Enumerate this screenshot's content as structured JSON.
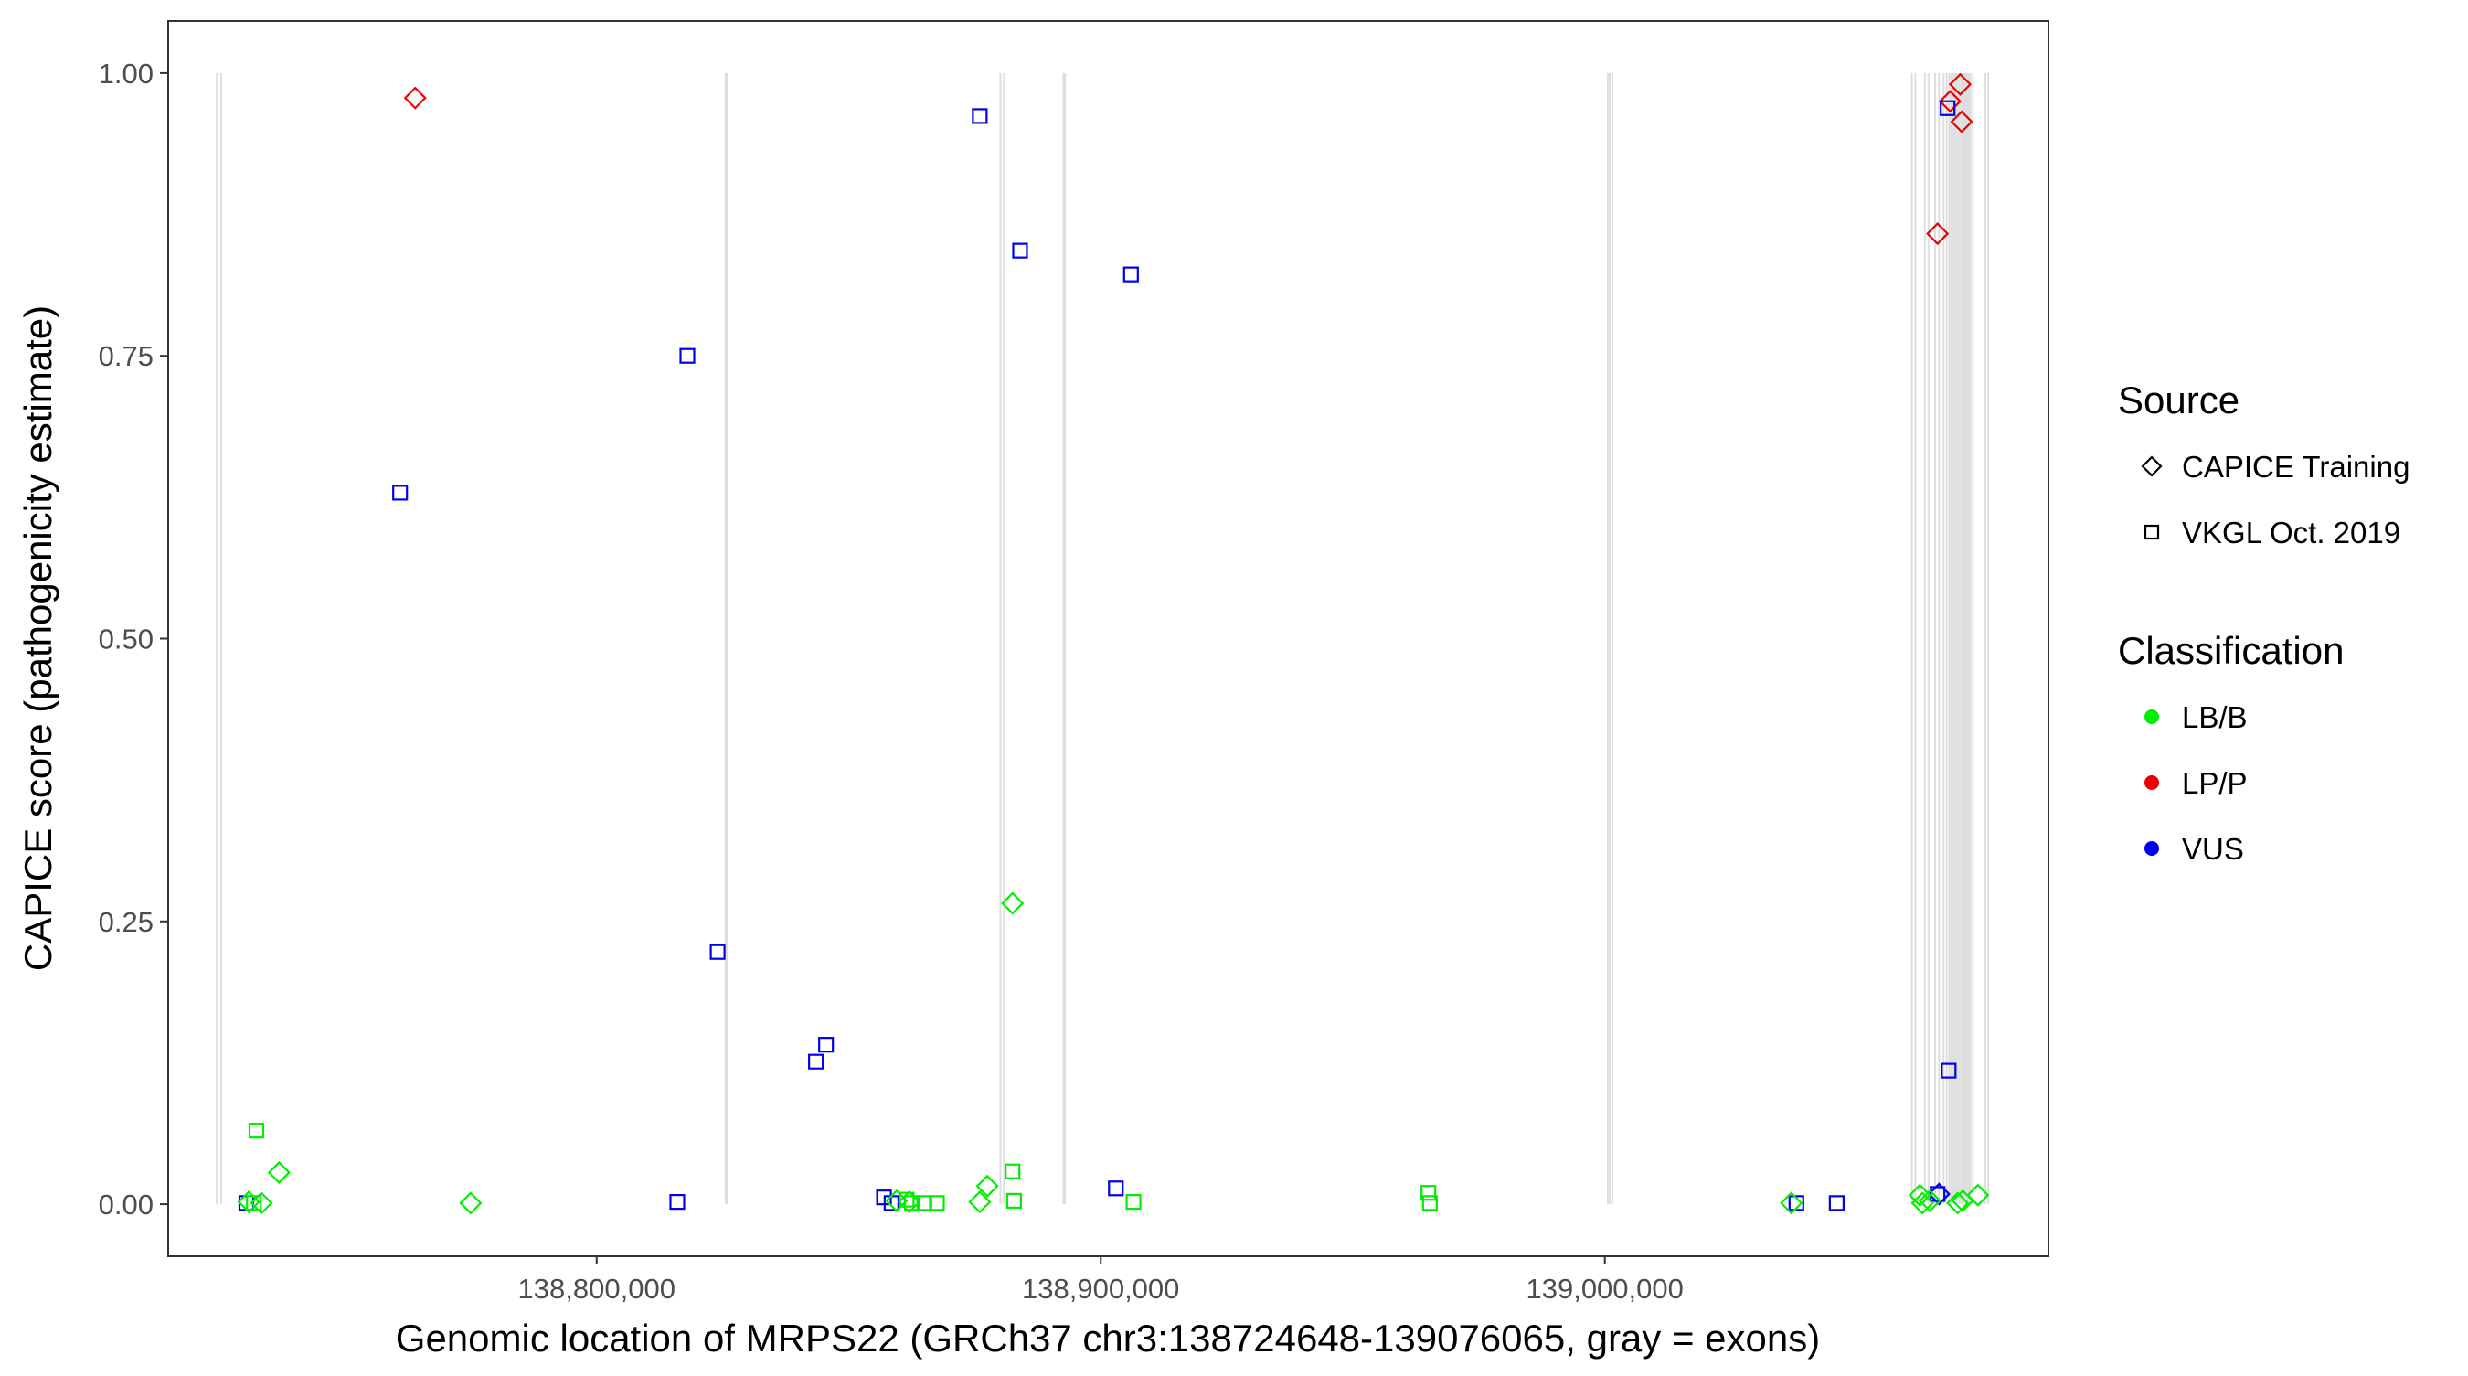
{
  "chart_data": {
    "type": "scatter",
    "xlabel": "Genomic location of MRPS22 (GRCh37 chr3:138724648-139076065, gray = exons)",
    "ylabel": "CAPICE score (pathogenicity estimate)",
    "xlim": [
      138715000,
      139088000
    ],
    "ylim": [
      -0.046,
      1.046
    ],
    "x_ticks": [
      138800000,
      138900000,
      139000000
    ],
    "x_tick_labels": [
      "138,800,000",
      "138,900,000",
      "139,000,000"
    ],
    "y_ticks": [
      0,
      0.25,
      0.5,
      0.75,
      1
    ],
    "y_tick_labels": [
      "0.00",
      "0.25",
      "0.50",
      "0.75",
      "1.00"
    ],
    "grid": false,
    "legend_position": "right",
    "colors": {
      "LB/B": "#00ee00",
      "LP/P": "#ee0000",
      "VUS": "#0000ee"
    },
    "exon_lines": [
      138724648,
      138725500,
      138825600,
      138825800,
      138880100,
      138880800,
      138892600,
      138892900,
      139000600,
      139001000,
      139001500,
      139060900,
      139061600,
      139063500,
      139064200,
      139065500,
      139066300,
      139067200,
      139067800,
      139068300,
      139068700,
      139069100,
      139069500,
      139069900,
      139070300,
      139070700,
      139071000,
      139071300,
      139071600,
      139071900,
      139072200,
      139072500,
      139073000,
      139075500,
      139076065
    ],
    "legends": [
      {
        "title": "Source",
        "items": [
          {
            "label": "CAPICE Training",
            "shape": "diamond"
          },
          {
            "label": "VKGL Oct. 2019",
            "shape": "square"
          }
        ]
      },
      {
        "title": "Classification",
        "items": [
          {
            "label": "LB/B",
            "class": "LB/B"
          },
          {
            "label": "LP/P",
            "class": "LP/P"
          },
          {
            "label": "VUS",
            "class": "VUS"
          }
        ]
      }
    ],
    "points": [
      {
        "x": 138764000,
        "y": 0.978,
        "source": "CAPICE Training",
        "class": "LP/P"
      },
      {
        "x": 139066000,
        "y": 0.858,
        "source": "CAPICE Training",
        "class": "LP/P"
      },
      {
        "x": 139068500,
        "y": 0.975,
        "source": "CAPICE Training",
        "class": "LP/P"
      },
      {
        "x": 139070500,
        "y": 0.99,
        "source": "CAPICE Training",
        "class": "LP/P"
      },
      {
        "x": 139070800,
        "y": 0.957,
        "source": "CAPICE Training",
        "class": "LP/P"
      },
      {
        "x": 138761000,
        "y": 0.629,
        "source": "VKGL Oct. 2019",
        "class": "VUS"
      },
      {
        "x": 138818000,
        "y": 0.75,
        "source": "VKGL Oct. 2019",
        "class": "VUS"
      },
      {
        "x": 138824000,
        "y": 0.223,
        "source": "VKGL Oct. 2019",
        "class": "VUS"
      },
      {
        "x": 138843500,
        "y": 0.126,
        "source": "VKGL Oct. 2019",
        "class": "VUS"
      },
      {
        "x": 138845500,
        "y": 0.141,
        "source": "VKGL Oct. 2019",
        "class": "VUS"
      },
      {
        "x": 138876000,
        "y": 0.962,
        "source": "VKGL Oct. 2019",
        "class": "VUS"
      },
      {
        "x": 138884000,
        "y": 0.843,
        "source": "VKGL Oct. 2019",
        "class": "VUS"
      },
      {
        "x": 138906000,
        "y": 0.822,
        "source": "VKGL Oct. 2019",
        "class": "VUS"
      },
      {
        "x": 138730500,
        "y": 0.001,
        "source": "VKGL Oct. 2019",
        "class": "VUS"
      },
      {
        "x": 138816000,
        "y": 0.002,
        "source": "VKGL Oct. 2019",
        "class": "VUS"
      },
      {
        "x": 138857000,
        "y": 0.006,
        "source": "VKGL Oct. 2019",
        "class": "VUS"
      },
      {
        "x": 138858500,
        "y": 0.001,
        "source": "VKGL Oct. 2019",
        "class": "VUS"
      },
      {
        "x": 138903000,
        "y": 0.014,
        "source": "VKGL Oct. 2019",
        "class": "VUS"
      },
      {
        "x": 139038000,
        "y": 0.001,
        "source": "VKGL Oct. 2019",
        "class": "VUS"
      },
      {
        "x": 139046000,
        "y": 0.001,
        "source": "VKGL Oct. 2019",
        "class": "VUS"
      },
      {
        "x": 139066000,
        "y": 0.009,
        "source": "VKGL Oct. 2019",
        "class": "VUS"
      },
      {
        "x": 139068000,
        "y": 0.969,
        "source": "VKGL Oct. 2019",
        "class": "VUS"
      },
      {
        "x": 139068200,
        "y": 0.118,
        "source": "VKGL Oct. 2019",
        "class": "VUS"
      },
      {
        "x": 139066300,
        "y": 0.009,
        "source": "CAPICE Training",
        "class": "VUS"
      },
      {
        "x": 138732500,
        "y": 0.065,
        "source": "VKGL Oct. 2019",
        "class": "LB/B"
      },
      {
        "x": 138732000,
        "y": 0.001,
        "source": "VKGL Oct. 2019",
        "class": "LB/B"
      },
      {
        "x": 138861500,
        "y": 0.004,
        "source": "VKGL Oct. 2019",
        "class": "LB/B"
      },
      {
        "x": 138862500,
        "y": 0.001,
        "source": "VKGL Oct. 2019",
        "class": "LB/B"
      },
      {
        "x": 138865000,
        "y": 0.001,
        "source": "VKGL Oct. 2019",
        "class": "LB/B"
      },
      {
        "x": 138867500,
        "y": 0.001,
        "source": "VKGL Oct. 2019",
        "class": "LB/B"
      },
      {
        "x": 138882500,
        "y": 0.029,
        "source": "VKGL Oct. 2019",
        "class": "LB/B"
      },
      {
        "x": 138882800,
        "y": 0.003,
        "source": "VKGL Oct. 2019",
        "class": "LB/B"
      },
      {
        "x": 138906500,
        "y": 0.002,
        "source": "VKGL Oct. 2019",
        "class": "LB/B"
      },
      {
        "x": 138965000,
        "y": 0.01,
        "source": "VKGL Oct. 2019",
        "class": "LB/B"
      },
      {
        "x": 138965300,
        "y": 0.001,
        "source": "VKGL Oct. 2019",
        "class": "LB/B"
      },
      {
        "x": 138731000,
        "y": 0.002,
        "source": "CAPICE Training",
        "class": "LB/B"
      },
      {
        "x": 138733500,
        "y": 0.001,
        "source": "CAPICE Training",
        "class": "LB/B"
      },
      {
        "x": 138737000,
        "y": 0.028,
        "source": "CAPICE Training",
        "class": "LB/B"
      },
      {
        "x": 138775000,
        "y": 0.001,
        "source": "CAPICE Training",
        "class": "LB/B"
      },
      {
        "x": 138859500,
        "y": 0.003,
        "source": "CAPICE Training",
        "class": "LB/B"
      },
      {
        "x": 138862000,
        "y": 0.002,
        "source": "CAPICE Training",
        "class": "LB/B"
      },
      {
        "x": 138876000,
        "y": 0.002,
        "source": "CAPICE Training",
        "class": "LB/B"
      },
      {
        "x": 138877500,
        "y": 0.016,
        "source": "CAPICE Training",
        "class": "LB/B"
      },
      {
        "x": 138882500,
        "y": 0.266,
        "source": "CAPICE Training",
        "class": "LB/B"
      },
      {
        "x": 139037000,
        "y": 0.001,
        "source": "CAPICE Training",
        "class": "LB/B"
      },
      {
        "x": 139062500,
        "y": 0.008,
        "source": "CAPICE Training",
        "class": "LB/B"
      },
      {
        "x": 139063000,
        "y": 0.001,
        "source": "CAPICE Training",
        "class": "LB/B"
      },
      {
        "x": 139064500,
        "y": 0.003,
        "source": "CAPICE Training",
        "class": "LB/B"
      },
      {
        "x": 139070000,
        "y": 0.001,
        "source": "CAPICE Training",
        "class": "LB/B"
      },
      {
        "x": 139071000,
        "y": 0.003,
        "source": "CAPICE Training",
        "class": "LB/B"
      },
      {
        "x": 139074000,
        "y": 0.008,
        "source": "CAPICE Training",
        "class": "LB/B"
      }
    ]
  }
}
